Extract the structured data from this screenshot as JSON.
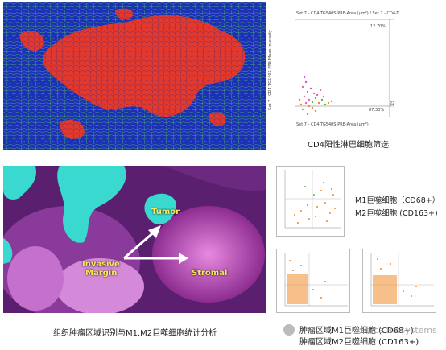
{
  "top_panel": {
    "plot": {
      "title": "Set 7 - CD4-TG540S-PRE-Area (µm²) / Set 7 - CD4-T",
      "ylabel": "Set 7 - CD4-TG540S-PRE-Mean Intensity",
      "xlabel": "Set 7 - CD4-TG540S-PRE-Area (µm²)",
      "q_top": "12.70%",
      "q_bottom": "87.30%",
      "tick": "22"
    },
    "caption": "CD4阳性淋巴细胞筛选"
  },
  "bottom_panel": {
    "image_labels": {
      "tumor": "Tumor",
      "invasive": "Invasive",
      "margin": "Margin",
      "stromal": "Stromal"
    },
    "caption": "组织肿瘤区域识别与M1.M2巨噬细胞统计分析",
    "m1_label": "M1巨噬细胞（CD68+）",
    "m2_label": "M2巨噬细胞 (CD163+)",
    "bottom_caption_1": "肿瘤区域M1巨噬细胞 (CD68+)",
    "bottom_caption_2": "肿瘤区域M2巨噬细胞 (CD163+)",
    "watermark": "Leica Biosystems"
  },
  "colors": {
    "cell_blue": "#1b2fb8",
    "cell_red": "#e3392c",
    "cyan_region": "#39d9cf",
    "stroma_magenta": "#c850c0",
    "label_yellow": "#f5e65b"
  }
}
